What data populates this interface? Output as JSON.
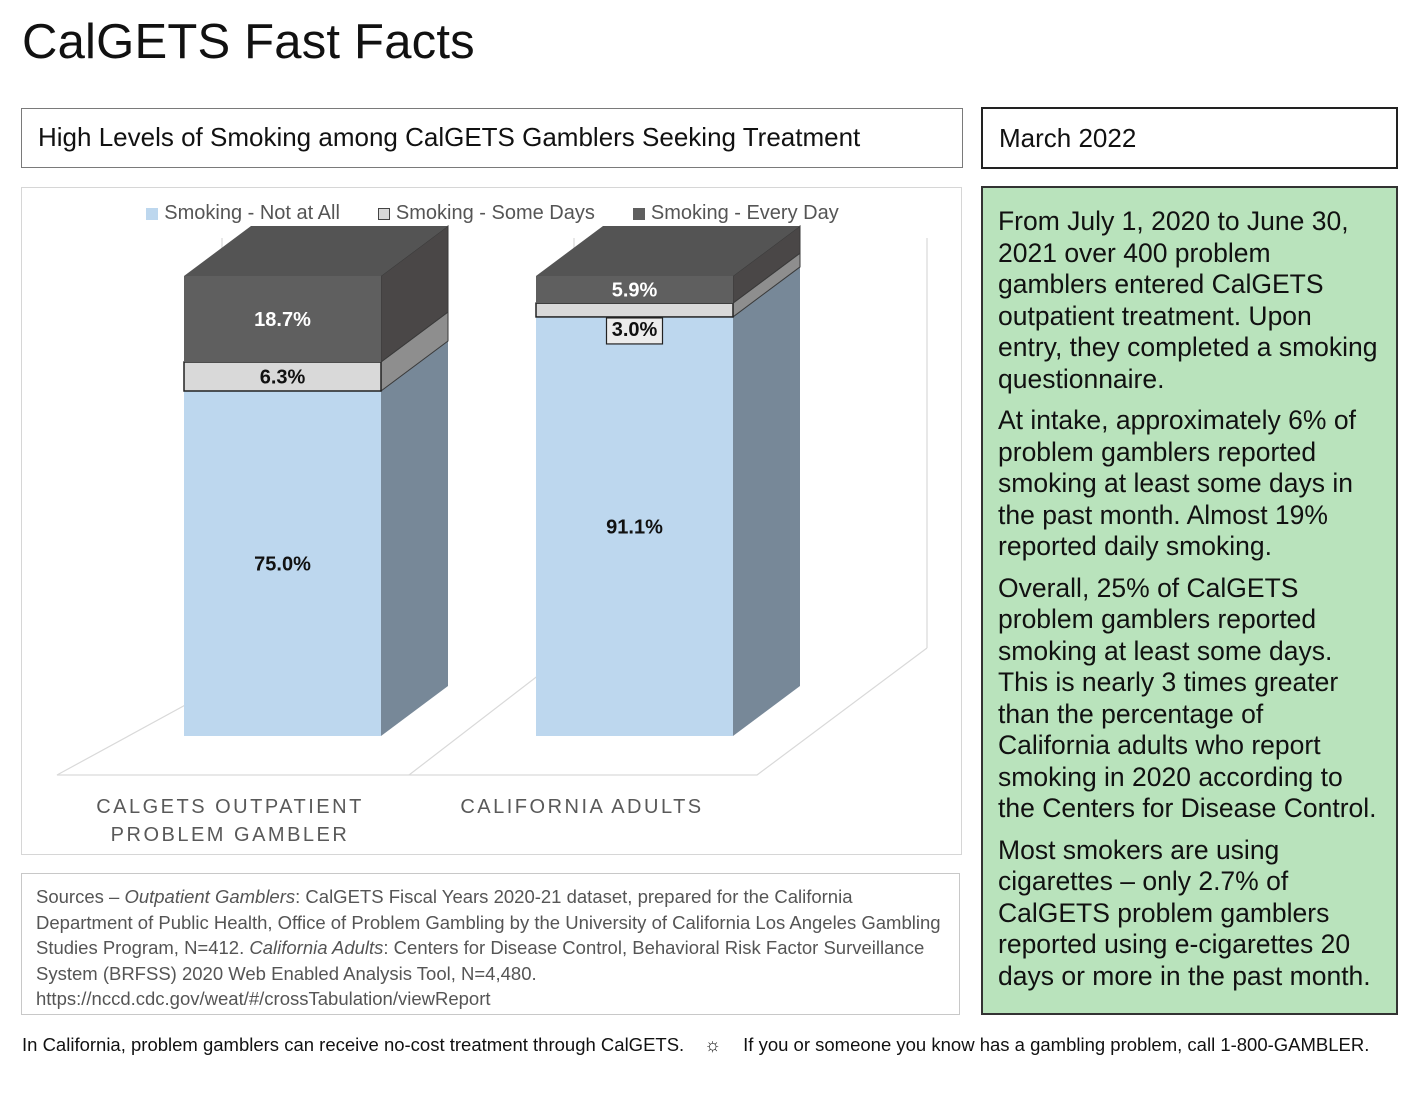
{
  "page": {
    "title": "CalGETS Fast Facts",
    "chart_heading": "High Levels of Smoking among CalGETS Gamblers Seeking Treatment",
    "date": "March 2022"
  },
  "chart_data": {
    "type": "bar",
    "stacked": true,
    "three_d": true,
    "categories": [
      "CALGETS OUTPATIENT PROBLEM GAMBLER",
      "CALIFORNIA ADULTS"
    ],
    "category_lines": [
      [
        "CALGETS OUTPATIENT",
        "PROBLEM GAMBLER"
      ],
      [
        "CALIFORNIA ADULTS"
      ]
    ],
    "series": [
      {
        "name": "Smoking - Not at All",
        "values": [
          75.0,
          91.1
        ],
        "labels": [
          "75.0%",
          "91.1%"
        ],
        "color": "#bdd7ee",
        "side_color": "#778898",
        "label_color": "#111111"
      },
      {
        "name": "Smoking - Some Days",
        "values": [
          6.3,
          3.0
        ],
        "labels": [
          "6.3%",
          "3.0%"
        ],
        "color": "#d9d9d9",
        "side_color": "#8e8e8e",
        "label_color": "#111111"
      },
      {
        "name": "Smoking - Every Day",
        "values": [
          18.7,
          5.9
        ],
        "labels": [
          "18.7%",
          "5.9%"
        ],
        "color": "#5f5f5f",
        "side_color": "#4a4747",
        "top_color": "#545454",
        "label_color": "#ffffff"
      }
    ],
    "ylim": [
      0,
      100
    ],
    "legend_position": "top"
  },
  "info": {
    "paragraphs": [
      "From July 1, 2020 to June 30, 2021 over 400 problem gamblers entered CalGETS outpatient treatment. Upon entry, they completed a smoking questionnaire.",
      "At intake, approximately 6% of problem gamblers reported smoking at least some days in the past month. Almost 19% reported daily smoking.",
      "Overall, 25% of CalGETS problem gamblers reported smoking at least some days. This is nearly 3 times greater than the percentage of California adults who report smoking in 2020 according to the Centers for Disease Control.",
      "Most smokers are using cigarettes – only 2.7% of CalGETS problem gamblers reported using e-cigarettes 20 days or more in the past month."
    ]
  },
  "sources": {
    "prefix": "Sources – ",
    "label1": "Outpatient Gamblers",
    "text1": ": CalGETS Fiscal Years 2020-21 dataset, prepared for the California Department of Public Health, Office of Problem Gambling by the University of California Los Angeles Gambling Studies Program, N=412.  ",
    "label2": "California Adults",
    "text2": ": Centers for Disease Control, Behavioral Risk Factor Surveillance System (BRFSS) 2020 Web Enabled Analysis Tool, N=4,480.",
    "url": "https://nccd.cdc.gov/weat/#/crossTabulation/viewReport"
  },
  "footer": {
    "left_text": "In California, problem gamblers can receive no-cost treatment through CalGETS.",
    "separator_icon": "sun-icon",
    "right_text": "If you or someone you know has a gambling problem, call 1-800-GAMBLER."
  }
}
